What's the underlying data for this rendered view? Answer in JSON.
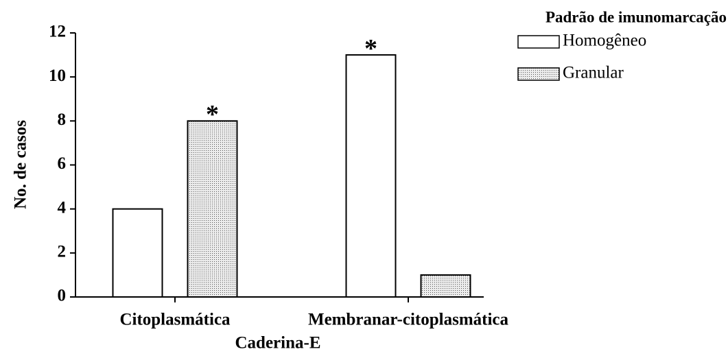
{
  "chart_data": {
    "type": "bar",
    "xlabel": "Caderina-E",
    "ylabel": "No. de casos",
    "categories": [
      "Citoplasmática",
      "Membranar-citoplasmática"
    ],
    "series": [
      {
        "name": "Homogêneo",
        "color": "#ffffff",
        "values": [
          4,
          11
        ]
      },
      {
        "name": "Granular",
        "color": "#d8d8d8",
        "pattern": "dotted",
        "values": [
          8,
          1
        ]
      }
    ],
    "annotations": [
      {
        "text": "*",
        "series": 1,
        "category": 0
      },
      {
        "text": "*",
        "series": 0,
        "category": 1
      }
    ],
    "ylim": [
      0,
      12
    ],
    "yticks": [
      0,
      2,
      4,
      6,
      8,
      10,
      12
    ],
    "grid": false,
    "legend": {
      "title": "Padrão de imunomarcação",
      "position": "upper right"
    }
  }
}
